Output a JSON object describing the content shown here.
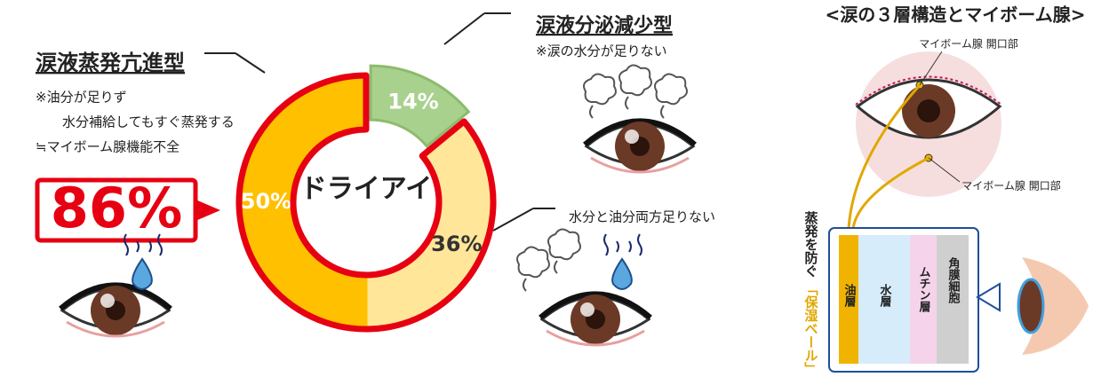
{
  "chart_data": {
    "type": "donut",
    "center_label": "ドライアイ",
    "segments": [
      {
        "name": "涙液分泌減少型",
        "value": 14,
        "value_label": "14%",
        "color": "#a9d18e"
      },
      {
        "name": "水分と油分両方足りない",
        "value": 36,
        "value_label": "36%",
        "color": "#ffe699"
      },
      {
        "name": "涙液蒸発亢進型",
        "value": 50,
        "value_label": "50%",
        "color": "#ffc000"
      }
    ],
    "highlight": {
      "value": 86,
      "label": "86%",
      "color": "#e60012"
    },
    "left_notes": [
      "※油分が足りず",
      "水分補給してもすぐ蒸発する",
      "≒マイボーム腺機能不全"
    ],
    "top_note": "※涙の水分が足りない"
  },
  "diagram": {
    "title": "<涙の３層構造とマイボーム腺>",
    "gland_labels": [
      "マイボーム腺 開口部",
      "マイボーム腺 開口部"
    ],
    "caption": "蒸発を防ぐ",
    "caption_highlight": "「保湿ベール」",
    "layers": [
      "油層",
      "水層",
      "ムチン層",
      "角膜細胞"
    ]
  }
}
